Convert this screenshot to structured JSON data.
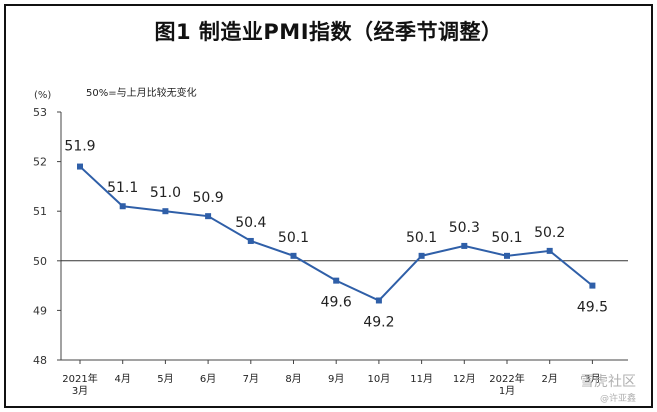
{
  "chart_data": {
    "type": "line",
    "title": "图1 制造业PMI指数（经季节调整）",
    "ylabel": "(%)",
    "note": "50%=与上月比较无变化",
    "categories": [
      "2021年\n3月",
      "4月",
      "5月",
      "6月",
      "7月",
      "8月",
      "9月",
      "10月",
      "11月",
      "12月",
      "2022年\n1月",
      "2月",
      "3月"
    ],
    "series": [
      {
        "values": [
          51.9,
          51.1,
          51.0,
          50.9,
          50.4,
          50.1,
          49.6,
          49.2,
          50.1,
          50.3,
          50.1,
          50.2,
          49.5
        ],
        "labels": [
          "51.9",
          "51.1",
          "51.0",
          "50.9",
          "50.4",
          "50.1",
          "49.6",
          "49.2",
          "50.1",
          "50.3",
          "50.1",
          "50.2",
          "49.5"
        ]
      }
    ],
    "ylim": [
      48,
      53
    ],
    "yticks": [
      48,
      49,
      50,
      51,
      52,
      53
    ],
    "reference_line": 50,
    "grid": false,
    "line_color": "#2f5fa8"
  },
  "watermark": {
    "text": "雪虎社区",
    "sub": "@许亚鑫"
  }
}
